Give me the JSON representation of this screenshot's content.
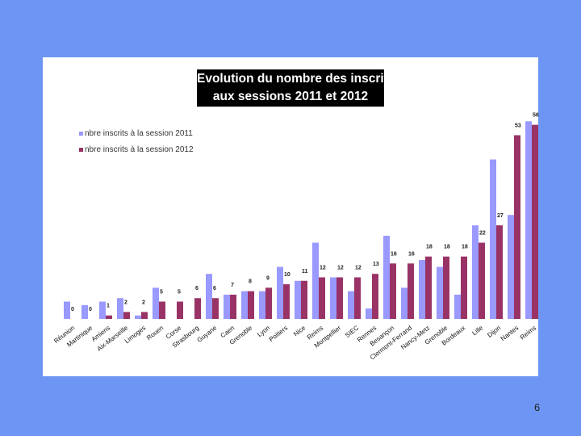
{
  "chart_data": {
    "type": "bar",
    "title_line1": "Evolution du nombre des inscrits",
    "title_line2": "aux sessions 2011 et 2012",
    "categories": [
      "Réunion",
      "Martinique",
      "Amiens",
      "Aix-Marseille",
      "Limoges",
      "Rouen",
      "Corse",
      "Strasbourg",
      "Guyane",
      "Caen",
      "Grenoble",
      "Lyon",
      "Poitiers",
      "Nice",
      "Reims",
      "Montpellier",
      "SIEC",
      "Rennes",
      "Besançon",
      "Clermont-Ferrand",
      "Nancy-Metz",
      "Grenoble",
      "Bordeaux",
      "Lille",
      "Dijon",
      "Nantes",
      "Reims"
    ],
    "series": [
      {
        "name": "nbre inscrits à la session 2011",
        "color": "#9999ff",
        "values": [
          5,
          4,
          5,
          6,
          1,
          9,
          0,
          0,
          13,
          7,
          8,
          8,
          15,
          11,
          22,
          12,
          8,
          3,
          24,
          9,
          17,
          15,
          7,
          27,
          46,
          30,
          57
        ]
      },
      {
        "name": "nbre inscrits à la session 2012",
        "color": "#993366",
        "values": [
          0,
          0,
          1,
          2,
          2,
          5,
          5,
          6,
          6,
          7,
          8,
          9,
          10,
          11,
          12,
          12,
          12,
          13,
          16,
          16,
          18,
          18,
          18,
          22,
          27,
          53,
          56
        ]
      }
    ],
    "data_labels": [
      "0",
      "0",
      "1",
      "2",
      "2",
      "5",
      "5",
      "6",
      "6",
      "7",
      "8",
      "9",
      "10",
      "11",
      "12",
      "12",
      "12",
      "13",
      "16",
      "16",
      "18",
      "18",
      "18",
      "22",
      "27",
      "53",
      "56"
    ],
    "ylim": [
      0,
      58
    ]
  },
  "page_number": "6"
}
